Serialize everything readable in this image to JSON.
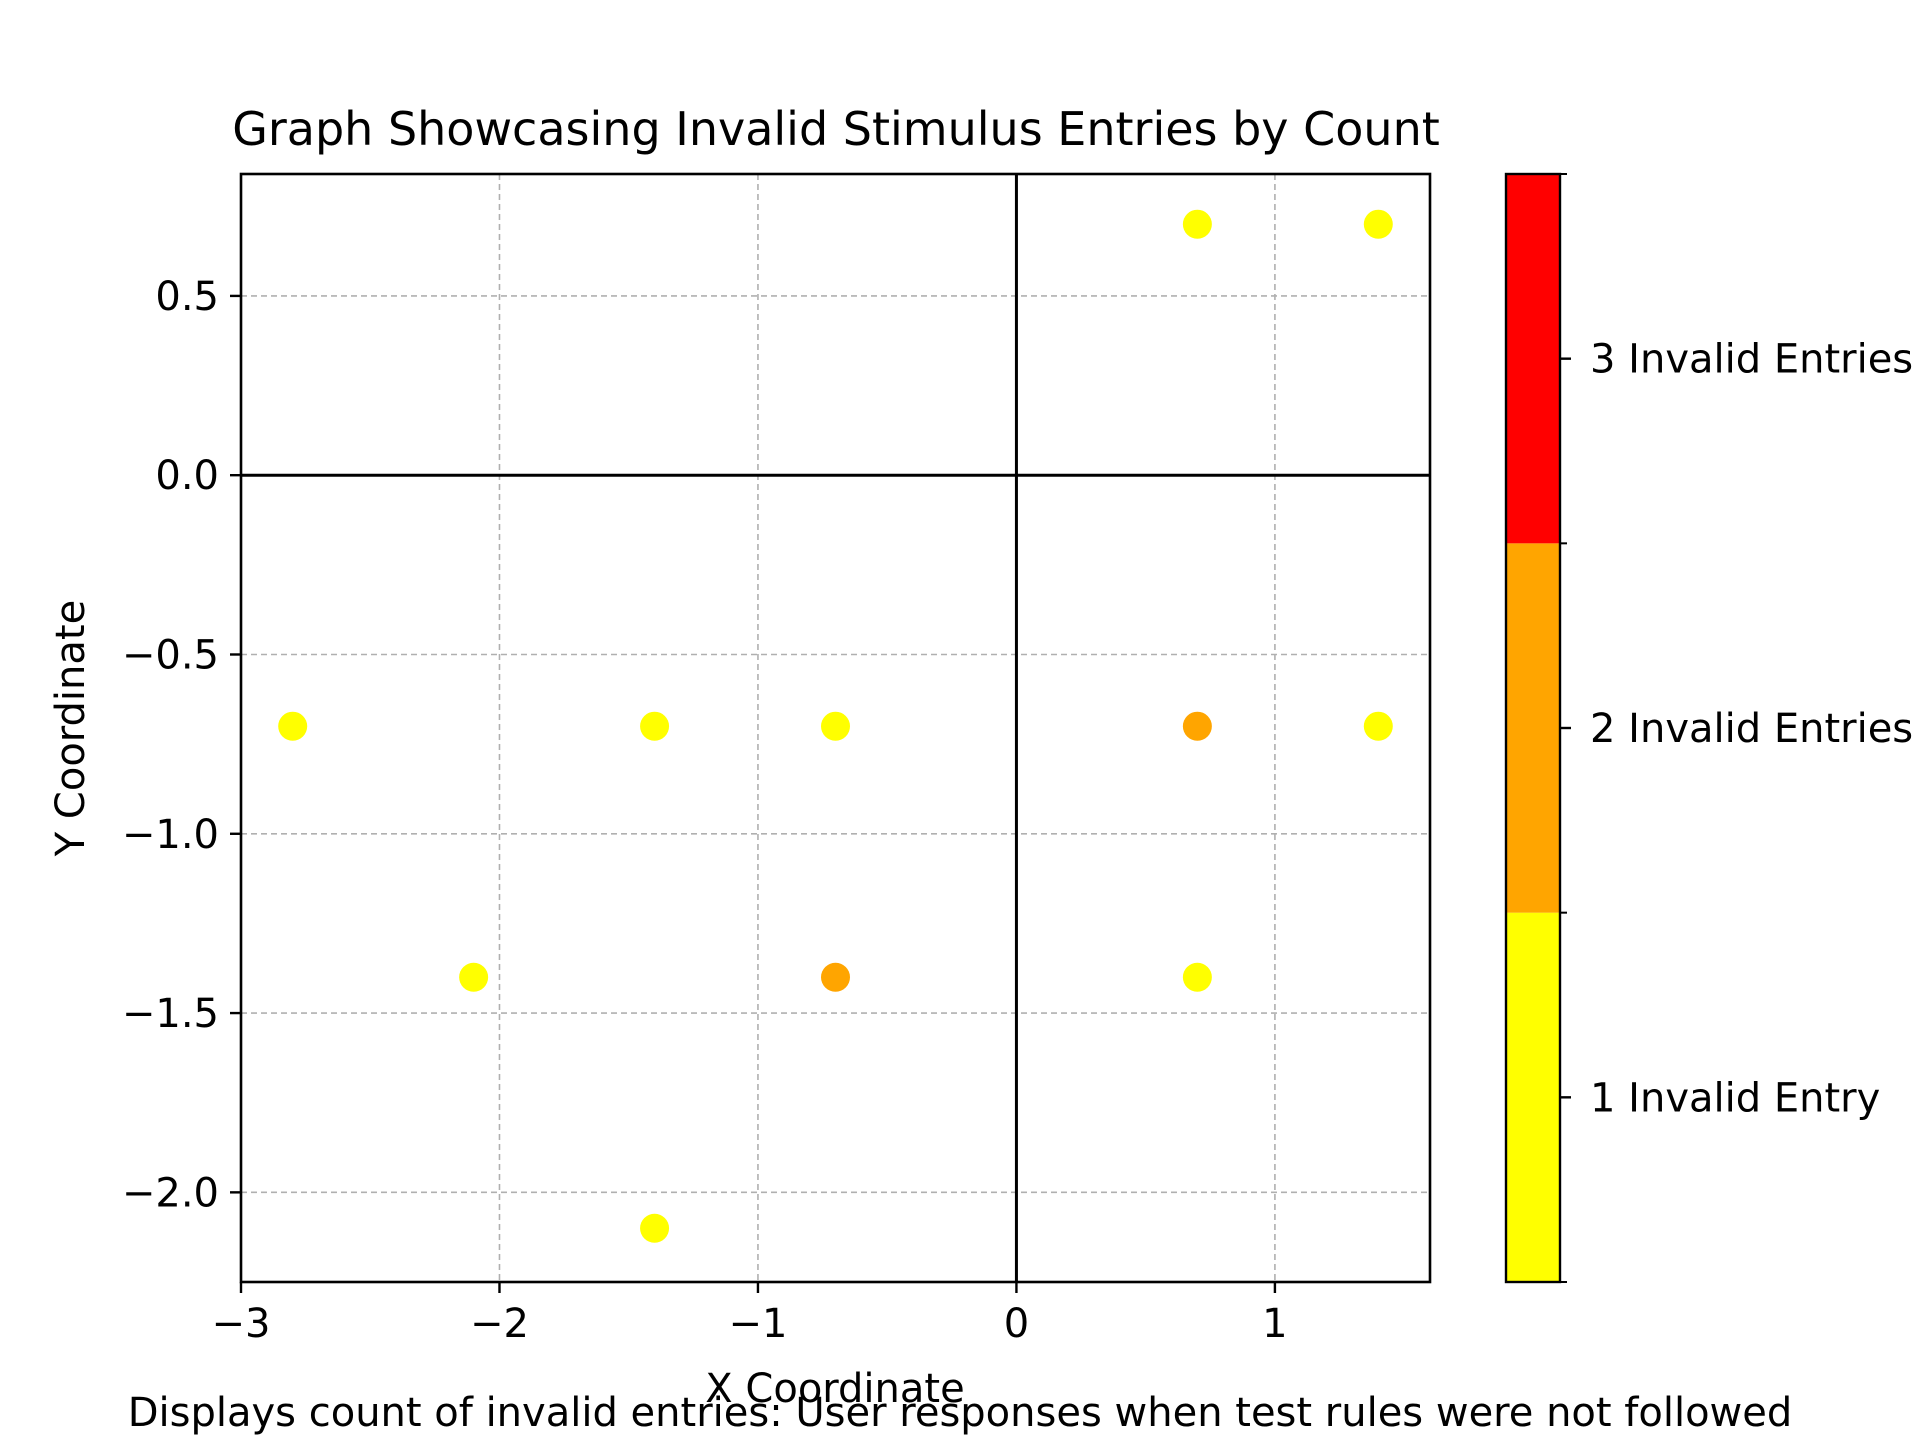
{
  "chart_data": {
    "type": "scatter",
    "title": "Graph Showcasing Invalid Stimulus Entries by Count",
    "xlabel": "X Coordinate",
    "ylabel": "Y Coordinate",
    "caption": "Displays count of invalid entries: User responses when test rules were not followed",
    "xlim": [
      -3.0,
      1.6
    ],
    "ylim": [
      -2.25,
      0.84
    ],
    "xticks": [
      -3,
      -2,
      -1,
      0,
      1
    ],
    "xtick_labels": [
      "−3",
      "−2",
      "−1",
      "0",
      "1"
    ],
    "yticks": [
      0.5,
      0.0,
      -0.5,
      -1.0,
      -1.5,
      -2.0
    ],
    "ytick_labels": [
      "0.5",
      "0.0",
      "−0.5",
      "−1.0",
      "−1.5",
      "−2.0"
    ],
    "grid": true,
    "reference_lines": {
      "x": 0,
      "y": 0
    },
    "points": [
      {
        "x": 0.7,
        "y": 0.7,
        "count": 1
      },
      {
        "x": 1.4,
        "y": 0.7,
        "count": 1
      },
      {
        "x": -2.8,
        "y": -0.7,
        "count": 1
      },
      {
        "x": -1.4,
        "y": -0.7,
        "count": 1
      },
      {
        "x": -0.7,
        "y": -0.7,
        "count": 1
      },
      {
        "x": 0.7,
        "y": -0.7,
        "count": 2
      },
      {
        "x": 1.4,
        "y": -0.7,
        "count": 1
      },
      {
        "x": -2.1,
        "y": -1.4,
        "count": 1
      },
      {
        "x": -0.7,
        "y": -1.4,
        "count": 2
      },
      {
        "x": 0.7,
        "y": -1.4,
        "count": 1
      },
      {
        "x": -1.4,
        "y": -2.1,
        "count": 1
      }
    ],
    "colorbar": {
      "segments": [
        {
          "count": 1,
          "label": "1 Invalid Entry",
          "color": "#ffff00"
        },
        {
          "count": 2,
          "label": "2 Invalid Entries",
          "color": "#ffa500"
        },
        {
          "count": 3,
          "label": "3 Invalid Entries",
          "color": "#ff0000"
        }
      ]
    }
  }
}
